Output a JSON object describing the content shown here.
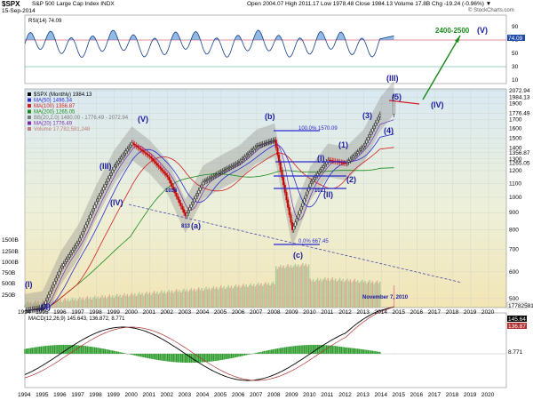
{
  "header": {
    "symbol": "$SPX",
    "name": "S&P 500 Large Cap Index  INDX",
    "date": "15-Sep-2014",
    "ohlc": "Open 2004.07  High 2011.17  Low 1978.48  Close 1984.13  Volume 17.8B  Chg -19.24 (-0.96%) ▼",
    "credit": "© StockCharts.com"
  },
  "rsi": {
    "label": "RSI(14) 74.09",
    "ticks": [
      "90",
      "70",
      "50",
      "30",
      "10"
    ],
    "value_tag": "74.09",
    "fill_color": "#3b7fd0"
  },
  "main": {
    "legend": [
      {
        "text": "$SPX (Monthly) 1984.13",
        "color": "#000000"
      },
      {
        "text": "MA(50) 1496.34",
        "color": "#2a2ad0"
      },
      {
        "text": "MA(100) 1356.87",
        "color": "#d02020"
      },
      {
        "text": "MA(200) 1265.05",
        "color": "#1a8a1a"
      },
      {
        "text": "BB(20,2.0) 1480.00 - 1776.49 - 2072.94",
        "color": "#7a7a7a"
      },
      {
        "text": "MA(20) 1776.49",
        "color": "#7a2ab0"
      },
      {
        "text": "Volume 17,782,581,248",
        "color": "#c08080"
      }
    ],
    "price_ticks": [
      "2072.94",
      "1984.13",
      "1900",
      "1776.49",
      "1700",
      "1600",
      "1500",
      "1400",
      "1356.87",
      "1300",
      "1265.05",
      "1200",
      "1100",
      "1000",
      "900",
      "800",
      "700",
      "600",
      "500"
    ],
    "vol_ticks": [
      "1500B",
      "1250B",
      "1000B",
      "750B",
      "500B",
      "250B"
    ],
    "vol_tag": "17782581",
    "annotations": {
      "target": "2400-2500",
      "V_top": "(V)",
      "III": "(III)",
      "IV_arrow": "(IV)",
      "pct100": "100.0%  1570.09",
      "pct0": "0.0%  667.45",
      "low1036": "1036",
      "low813": "813",
      "low1011": "1011",
      "date_note": "November 7, 2010"
    },
    "waves": [
      "(I)",
      "(II)",
      "(III)",
      "(IV)",
      "(V)",
      "(a)",
      "(b)",
      "(c)",
      "(I)",
      "(II)",
      "(1)",
      "(2)",
      "(3)",
      "(4)",
      "(5)"
    ]
  },
  "macd": {
    "label": "MACD(12,26,9) 145.643, 136.872, 8.771",
    "tag1": "145.64",
    "tag2": "136.87",
    "tag3": "8.771"
  },
  "years": [
    "1994",
    "1995",
    "1996",
    "1997",
    "1998",
    "1999",
    "2000",
    "2001",
    "2002",
    "2003",
    "2004",
    "2005",
    "2006",
    "2007",
    "2008",
    "2009",
    "2010",
    "2011",
    "2012",
    "2013",
    "2014",
    "2015",
    "2016",
    "2017",
    "2018",
    "2019",
    "2020"
  ],
  "chart_data": {
    "type": "line",
    "title": "$SPX S&P 500 Large Cap Index INDX",
    "xlabel": "",
    "ylabel": "",
    "x": [
      1994,
      1995,
      1996,
      1997,
      1998,
      1999,
      2000,
      2001,
      2002,
      2003,
      2004,
      2005,
      2006,
      2007,
      2008,
      2009,
      2010,
      2011,
      2012,
      2013,
      2014
    ],
    "series": [
      {
        "name": "$SPX (Monthly)",
        "values": [
          460,
          470,
          615,
          740,
          970,
          1230,
          1450,
          1320,
          1150,
          880,
          1110,
          1190,
          1270,
          1420,
          1480,
          800,
          1100,
          1290,
          1260,
          1420,
          1800
        ]
      }
    ],
    "ylim": [
      500,
      2100
    ],
    "log_scale": true,
    "grid": true
  }
}
